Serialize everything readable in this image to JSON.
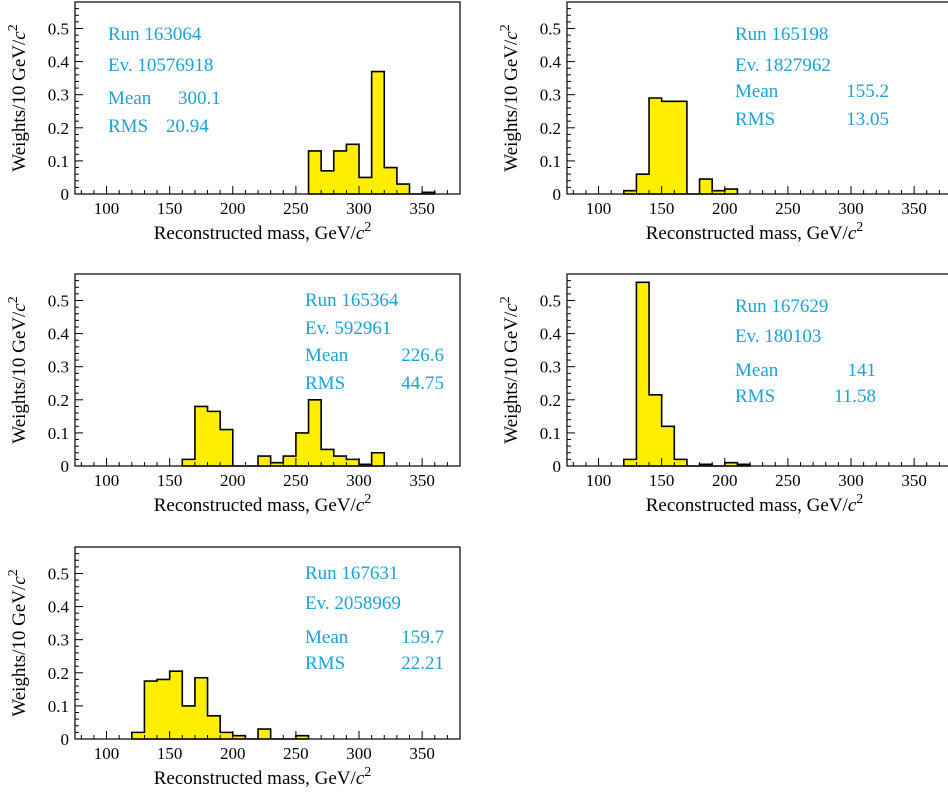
{
  "colors": {
    "fill": "#ffee00",
    "outline": "#000000",
    "info_text": "#1aa3d9"
  },
  "chart_data": [
    {
      "type": "bar",
      "xlabel": "Reconstructed mass, GeV/",
      "xlabel_italic": "c",
      "xlabel_sup": "2",
      "ylabel": "Weights/10 GeV/",
      "ylabel_italic": "c",
      "ylabel_sup": "2",
      "xlim": [
        75,
        380
      ],
      "ylim": [
        0,
        0.58
      ],
      "xticks": [
        "100",
        "150",
        "200",
        "250",
        "300",
        "350"
      ],
      "yticks": [
        "0",
        "0.1",
        "0.2",
        "0.3",
        "0.4",
        "0.5"
      ],
      "info": {
        "run": "Run 163064",
        "event": "Ev. 10576918",
        "mean_label": "Mean",
        "mean": "300.1",
        "rms_label": "RMS",
        "rms": "20.94"
      },
      "bin_width": 10,
      "bin_start": 260,
      "values": [
        0.13,
        0.07,
        0.13,
        0.15,
        0.05,
        0.37,
        0.08,
        0.03,
        0.0,
        0.005
      ]
    },
    {
      "type": "bar",
      "xlabel": "Reconstructed mass, GeV/",
      "xlabel_italic": "c",
      "xlabel_sup": "2",
      "ylabel": "Weights/10 GeV/",
      "ylabel_italic": "c",
      "ylabel_sup": "2",
      "xlim": [
        75,
        380
      ],
      "ylim": [
        0,
        0.58
      ],
      "xticks": [
        "100",
        "150",
        "200",
        "250",
        "300",
        "350"
      ],
      "yticks": [
        "0",
        "0.1",
        "0.2",
        "0.3",
        "0.4",
        "0.5"
      ],
      "info": {
        "run": "Run 165198",
        "event": "Ev. 1827962",
        "mean_label": "Mean",
        "mean": "155.2",
        "rms_label": "RMS",
        "rms": "13.05"
      },
      "bin_width": 10,
      "bin_start": 120,
      "values": [
        0.01,
        0.06,
        0.29,
        0.28,
        0.28,
        0.0,
        0.045,
        0.01,
        0.015
      ]
    },
    {
      "type": "bar",
      "xlabel": "Reconstructed mass, GeV/",
      "xlabel_italic": "c",
      "xlabel_sup": "2",
      "ylabel": "Weights/10 GeV/",
      "ylabel_italic": "c",
      "ylabel_sup": "2",
      "xlim": [
        75,
        380
      ],
      "ylim": [
        0,
        0.58
      ],
      "xticks": [
        "100",
        "150",
        "200",
        "250",
        "300",
        "350"
      ],
      "yticks": [
        "0",
        "0.1",
        "0.2",
        "0.3",
        "0.4",
        "0.5"
      ],
      "info": {
        "run": "Run 165364",
        "event": "Ev. 592961",
        "mean_label": "Mean",
        "mean": "226.6",
        "rms_label": "RMS",
        "rms": "44.75"
      },
      "bin_width": 10,
      "bin_start": 160,
      "values": [
        0.02,
        0.18,
        0.165,
        0.11,
        0.0,
        0.0,
        0.03,
        0.01,
        0.03,
        0.1,
        0.2,
        0.05,
        0.03,
        0.02,
        0.005,
        0.04
      ]
    },
    {
      "type": "bar",
      "xlabel": "Reconstructed mass, GeV/",
      "xlabel_italic": "c",
      "xlabel_sup": "2",
      "ylabel": "Weights/10 GeV/",
      "ylabel_italic": "c",
      "ylabel_sup": "2",
      "xlim": [
        75,
        380
      ],
      "ylim": [
        0,
        0.58
      ],
      "xticks": [
        "100",
        "150",
        "200",
        "250",
        "300",
        "350"
      ],
      "yticks": [
        "0",
        "0.1",
        "0.2",
        "0.3",
        "0.4",
        "0.5"
      ],
      "info": {
        "run": "Run 167629",
        "event": "Ev. 180103",
        "mean_label": "Mean",
        "mean": "141",
        "rms_label": "RMS",
        "rms": "11.58"
      },
      "bin_width": 10,
      "bin_start": 120,
      "values": [
        0.02,
        0.555,
        0.215,
        0.12,
        0.02,
        0.0,
        0.005,
        0.0,
        0.01,
        0.005
      ]
    },
    {
      "type": "bar",
      "xlabel": "Reconstructed mass, GeV/",
      "xlabel_italic": "c",
      "xlabel_sup": "2",
      "ylabel": "Weights/10 GeV/",
      "ylabel_italic": "c",
      "ylabel_sup": "2",
      "xlim": [
        75,
        380
      ],
      "ylim": [
        0,
        0.58
      ],
      "xticks": [
        "100",
        "150",
        "200",
        "250",
        "300",
        "350"
      ],
      "yticks": [
        "0",
        "0.1",
        "0.2",
        "0.3",
        "0.4",
        "0.5"
      ],
      "info": {
        "run": "Run 167631",
        "event": "Ev. 2058969",
        "mean_label": "Mean",
        "mean": "159.7",
        "rms_label": "RMS",
        "rms": "22.21"
      },
      "bin_width": 10,
      "bin_start": 120,
      "values": [
        0.02,
        0.175,
        0.18,
        0.205,
        0.1,
        0.185,
        0.07,
        0.02,
        0.01,
        0.0,
        0.03,
        0.0,
        0.0,
        0.01
      ]
    }
  ]
}
